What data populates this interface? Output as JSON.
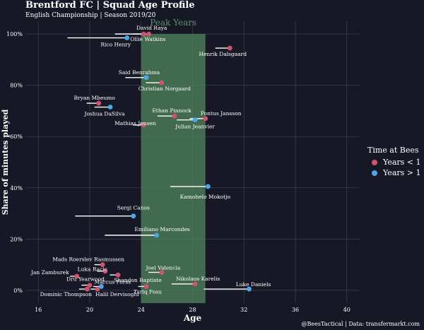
{
  "header": {
    "title": "Brentford FC | Squad Age Profile",
    "subtitle": "English Championship | Season 2019/20"
  },
  "caption": "@BeesTactical | Data: transfermarkt.com",
  "colors": {
    "background": "#161826",
    "years_lt_1": "#d4516e",
    "years_gt_1": "#4aa8e8",
    "peak_band": "#4e7f5a",
    "peak_label": "#5f8f6a",
    "grid": "#3a3d4d"
  },
  "chart_data": {
    "type": "scatter",
    "title": "Brentford FC | Squad Age Profile",
    "xlabel": "Age",
    "ylabel": "Share of minutes played",
    "xlim": [
      15,
      41
    ],
    "ylim": [
      -0.05,
      1.05
    ],
    "xticks": [
      16,
      20,
      24,
      28,
      32,
      36,
      40
    ],
    "yticks": [
      0,
      0.2,
      0.4,
      0.6,
      0.8,
      1.0
    ],
    "ytick_labels": [
      "0%",
      "20%",
      "40%",
      "60%",
      "80%",
      "100%"
    ],
    "peak_years": {
      "label": "Peak Years",
      "start": 24,
      "end": 29
    },
    "legend": {
      "title": "Time at Bees",
      "entries": [
        {
          "key": "lt1",
          "label": "Years < 1"
        },
        {
          "key": "gt1",
          "label": "Years > 1"
        }
      ]
    },
    "players": [
      {
        "name": "David Raya",
        "age": 24.6,
        "share": 1.0,
        "group": "lt1",
        "seg_start": 23.4,
        "ldx": 4,
        "ldy": -6,
        "anchor": "middle"
      },
      {
        "name": "Ollie Watkins",
        "age": 24.2,
        "share": 1.0,
        "group": "lt1",
        "seg_start": 22.0,
        "ldx": 6,
        "ldy": 10,
        "anchor": "middle"
      },
      {
        "name": "Rico Henry",
        "age": 22.9,
        "share": 0.985,
        "group": "gt1",
        "seg_start": 18.3,
        "ldx": -16,
        "ldy": 12,
        "anchor": "middle"
      },
      {
        "name": "Henrik Dalsgaard",
        "age": 30.9,
        "share": 0.945,
        "group": "lt1",
        "seg_start": 29.8,
        "ldx": -10,
        "ldy": 11,
        "anchor": "middle"
      },
      {
        "name": "Said Benrahma",
        "age": 24.4,
        "share": 0.83,
        "group": "gt1",
        "seg_start": 22.8,
        "ldx": -10,
        "ldy": -5,
        "anchor": "middle"
      },
      {
        "name": "Christian Norgaard",
        "age": 25.6,
        "share": 0.81,
        "group": "lt1",
        "seg_start": 24.4,
        "ldx": 4,
        "ldy": 11,
        "anchor": "middle"
      },
      {
        "name": "Bryan Mbeumo",
        "age": 20.7,
        "share": 0.73,
        "group": "lt1",
        "seg_start": 19.8,
        "ldx": -6,
        "ldy": -5,
        "anchor": "middle"
      },
      {
        "name": "Joshua DaSilva",
        "age": 21.6,
        "share": 0.715,
        "group": "gt1",
        "seg_start": 20.4,
        "ldx": -8,
        "ldy": 12,
        "anchor": "middle"
      },
      {
        "name": "Ethan Pinnock",
        "age": 26.6,
        "share": 0.68,
        "group": "lt1",
        "seg_start": 25.3,
        "ldx": -4,
        "ldy": -5,
        "anchor": "middle"
      },
      {
        "name": "Pontus Jansson",
        "age": 29.0,
        "share": 0.67,
        "group": "lt1",
        "seg_start": 27.8,
        "ldx": 22,
        "ldy": -5,
        "anchor": "middle"
      },
      {
        "name": "Julian Jeanvier",
        "age": 28.2,
        "share": 0.665,
        "group": "gt1",
        "seg_start": 26.8,
        "ldx": 0,
        "ldy": 12,
        "anchor": "middle"
      },
      {
        "name": "Mathias Jensen",
        "age": 24.2,
        "share": 0.645,
        "group": "lt1",
        "seg_start": 23.4,
        "ldx": -12,
        "ldy": 0,
        "anchor": "middle"
      },
      {
        "name": "Kamohelo Mokotjo",
        "age": 29.2,
        "share": 0.405,
        "group": "gt1",
        "seg_start": 26.3,
        "ldx": -4,
        "ldy": 17,
        "anchor": "middle"
      },
      {
        "name": "Sergi Canos",
        "age": 23.4,
        "share": 0.29,
        "group": "gt1",
        "seg_start": 18.9,
        "ldx": 0,
        "ldy": -9,
        "anchor": "middle"
      },
      {
        "name": "Emiliano Marcondes",
        "age": 25.2,
        "share": 0.215,
        "group": "gt1",
        "seg_start": 21.2,
        "ldx": 8,
        "ldy": -6,
        "anchor": "middle"
      },
      {
        "name": "Mads Roerslev Rasmussen",
        "age": 21.0,
        "share": 0.1,
        "group": "lt1",
        "seg_start": 20.4,
        "ldx": -20,
        "ldy": -5,
        "anchor": "middle"
      },
      {
        "name": "Luka Racic",
        "age": 21.2,
        "share": 0.075,
        "group": "lt1",
        "seg_start": 20.6,
        "ldx": -18,
        "ldy": 0,
        "anchor": "middle"
      },
      {
        "name": "Joel Valencia",
        "age": 25.6,
        "share": 0.07,
        "group": "lt1",
        "seg_start": 24.6,
        "ldx": 2,
        "ldy": -4,
        "anchor": "middle"
      },
      {
        "name": "Shandon Baptiste",
        "age": 22.2,
        "share": 0.06,
        "group": "lt1",
        "seg_start": 21.6,
        "ldx": 28,
        "ldy": 10,
        "anchor": "middle"
      },
      {
        "name": "Jan Zamburek",
        "age": 19.0,
        "share": 0.055,
        "group": "lt1",
        "seg_start": 18.5,
        "ldx": -38,
        "ldy": -3,
        "anchor": "middle"
      },
      {
        "name": "Nikolaos Karelis",
        "age": 28.2,
        "share": 0.025,
        "group": "lt1",
        "seg_start": 26.4,
        "ldx": 4,
        "ldy": -5,
        "anchor": "middle"
      },
      {
        "name": "Dru Yearwood",
        "age": 20.0,
        "share": 0.02,
        "group": "lt1",
        "seg_start": 19.4,
        "ldx": -6,
        "ldy": -6,
        "anchor": "middle"
      },
      {
        "name": "Marcus Forss",
        "age": 20.9,
        "share": 0.015,
        "group": "gt1",
        "seg_start": 20.3,
        "ldx": 16,
        "ldy": -4,
        "anchor": "middle"
      },
      {
        "name": "Tariq Fosu",
        "age": 24.4,
        "share": 0.015,
        "group": "lt1",
        "seg_start": 23.8,
        "ldx": 2,
        "ldy": 10,
        "anchor": "middle"
      },
      {
        "name": "Luke Daniels",
        "age": 32.4,
        "share": 0.005,
        "group": "gt1",
        "seg_start": 28.9,
        "ldx": 6,
        "ldy": -4,
        "anchor": "middle"
      },
      {
        "name": "Dominic Thompson",
        "age": 19.8,
        "share": 0.005,
        "group": "lt1",
        "seg_start": 19.2,
        "ldx": -30,
        "ldy": 10,
        "anchor": "middle"
      },
      {
        "name": "Halil Dervisoglu",
        "age": 20.6,
        "share": 0.005,
        "group": "lt1",
        "seg_start": 20.1,
        "ldx": 28,
        "ldy": 10,
        "anchor": "middle"
      }
    ]
  }
}
